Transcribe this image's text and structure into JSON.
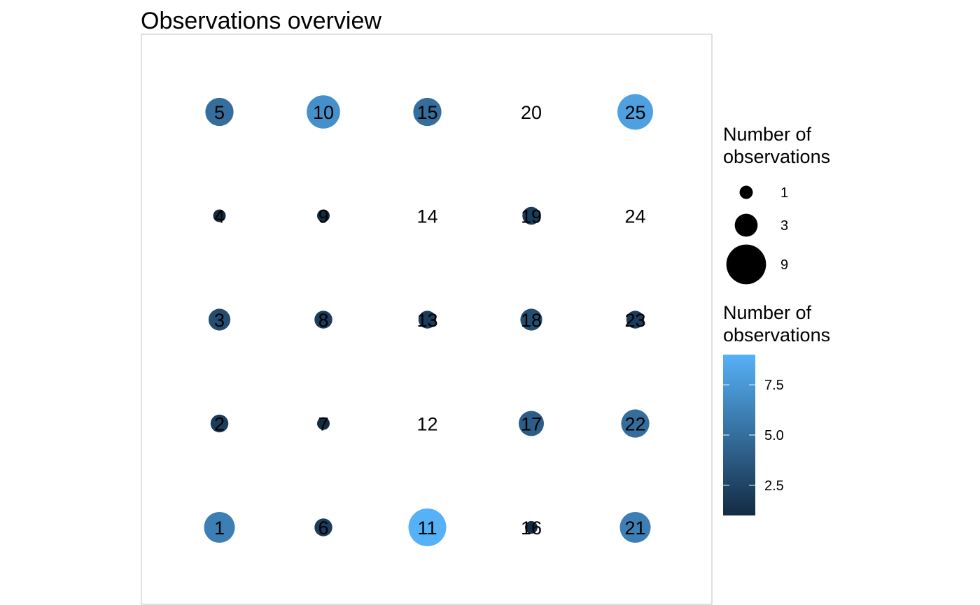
{
  "chart_data": {
    "type": "scatter",
    "title": "Observations overview",
    "grid": false,
    "legend_placement": "right",
    "size_legend": {
      "title_lines": [
        "Number of",
        "observations"
      ],
      "values": [
        1,
        3,
        9
      ]
    },
    "color_legend": {
      "title_lines": [
        "Number of",
        "observations"
      ],
      "range": [
        1,
        9
      ],
      "ticks": [
        2.5,
        5.0,
        7.5
      ],
      "tick_labels": [
        "2.5",
        "5.0",
        "7.5"
      ],
      "low_color": "#132B43",
      "high_color": "#56B1F7"
    },
    "points": [
      {
        "id": "1",
        "col": 1,
        "row": 1,
        "count": 6
      },
      {
        "id": "2",
        "col": 1,
        "row": 2,
        "count": 2
      },
      {
        "id": "3",
        "col": 1,
        "row": 3,
        "count": 3
      },
      {
        "id": "4",
        "col": 1,
        "row": 4,
        "count": 1
      },
      {
        "id": "5",
        "col": 1,
        "row": 5,
        "count": 5
      },
      {
        "id": "6",
        "col": 2,
        "row": 1,
        "count": 2
      },
      {
        "id": "7",
        "col": 2,
        "row": 2,
        "count": 1
      },
      {
        "id": "8",
        "col": 2,
        "row": 3,
        "count": 2
      },
      {
        "id": "9",
        "col": 2,
        "row": 4,
        "count": 1
      },
      {
        "id": "10",
        "col": 2,
        "row": 5,
        "count": 7
      },
      {
        "id": "11",
        "col": 3,
        "row": 1,
        "count": 9
      },
      {
        "id": "12",
        "col": 3,
        "row": 2,
        "count": 0
      },
      {
        "id": "13",
        "col": 3,
        "row": 3,
        "count": 2
      },
      {
        "id": "14",
        "col": 3,
        "row": 4,
        "count": 0
      },
      {
        "id": "15",
        "col": 3,
        "row": 5,
        "count": 5
      },
      {
        "id": "16",
        "col": 4,
        "row": 1,
        "count": 1
      },
      {
        "id": "17",
        "col": 4,
        "row": 2,
        "count": 4
      },
      {
        "id": "18",
        "col": 4,
        "row": 3,
        "count": 3
      },
      {
        "id": "19",
        "col": 4,
        "row": 4,
        "count": 2
      },
      {
        "id": "20",
        "col": 4,
        "row": 5,
        "count": 0
      },
      {
        "id": "21",
        "col": 5,
        "row": 1,
        "count": 6
      },
      {
        "id": "22",
        "col": 5,
        "row": 2,
        "count": 5
      },
      {
        "id": "23",
        "col": 5,
        "row": 3,
        "count": 2
      },
      {
        "id": "24",
        "col": 5,
        "row": 4,
        "count": 0
      },
      {
        "id": "25",
        "col": 5,
        "row": 5,
        "count": 8
      }
    ]
  }
}
